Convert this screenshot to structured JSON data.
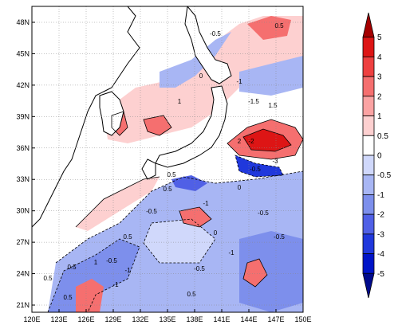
{
  "map": {
    "lon_ticks": [
      "120E",
      "123E",
      "126E",
      "129E",
      "132E",
      "135E",
      "138E",
      "141E",
      "144E",
      "147E",
      "150E"
    ],
    "lat_ticks": [
      "48N",
      "45N",
      "42N",
      "39N",
      "36N",
      "33N",
      "30N",
      "27N",
      "24N",
      "21N"
    ],
    "contour_labels": [
      "-0.5",
      "0.5",
      "0",
      "-1",
      "1",
      "-1.5",
      "1.5",
      "2",
      "-2",
      "-3",
      "-0.5",
      "0.5",
      "-1",
      "0",
      "-0.5",
      "0.5",
      "-0.5",
      "0.5",
      "-1",
      "0.5",
      "1",
      "-0.5",
      "0.5",
      "-0.5",
      "0",
      "0.5",
      "-1",
      "-0.5",
      "0.5",
      "-1"
    ]
  },
  "colorbar": {
    "levels": [
      "5",
      "4",
      "3",
      "2",
      "1",
      "0.5",
      "0",
      "-0.5",
      "-1",
      "-2",
      "-3",
      "-4",
      "-5"
    ],
    "colors": [
      "#a50000",
      "#dd1515",
      "#ee4040",
      "#f56f6f",
      "#fba3a3",
      "#fdd0d0",
      "#ffffff",
      "#d0d8fb",
      "#a8b6f4",
      "#7d8fec",
      "#5060e6",
      "#2038dc",
      "#0014c8",
      "#000a8c"
    ]
  }
}
